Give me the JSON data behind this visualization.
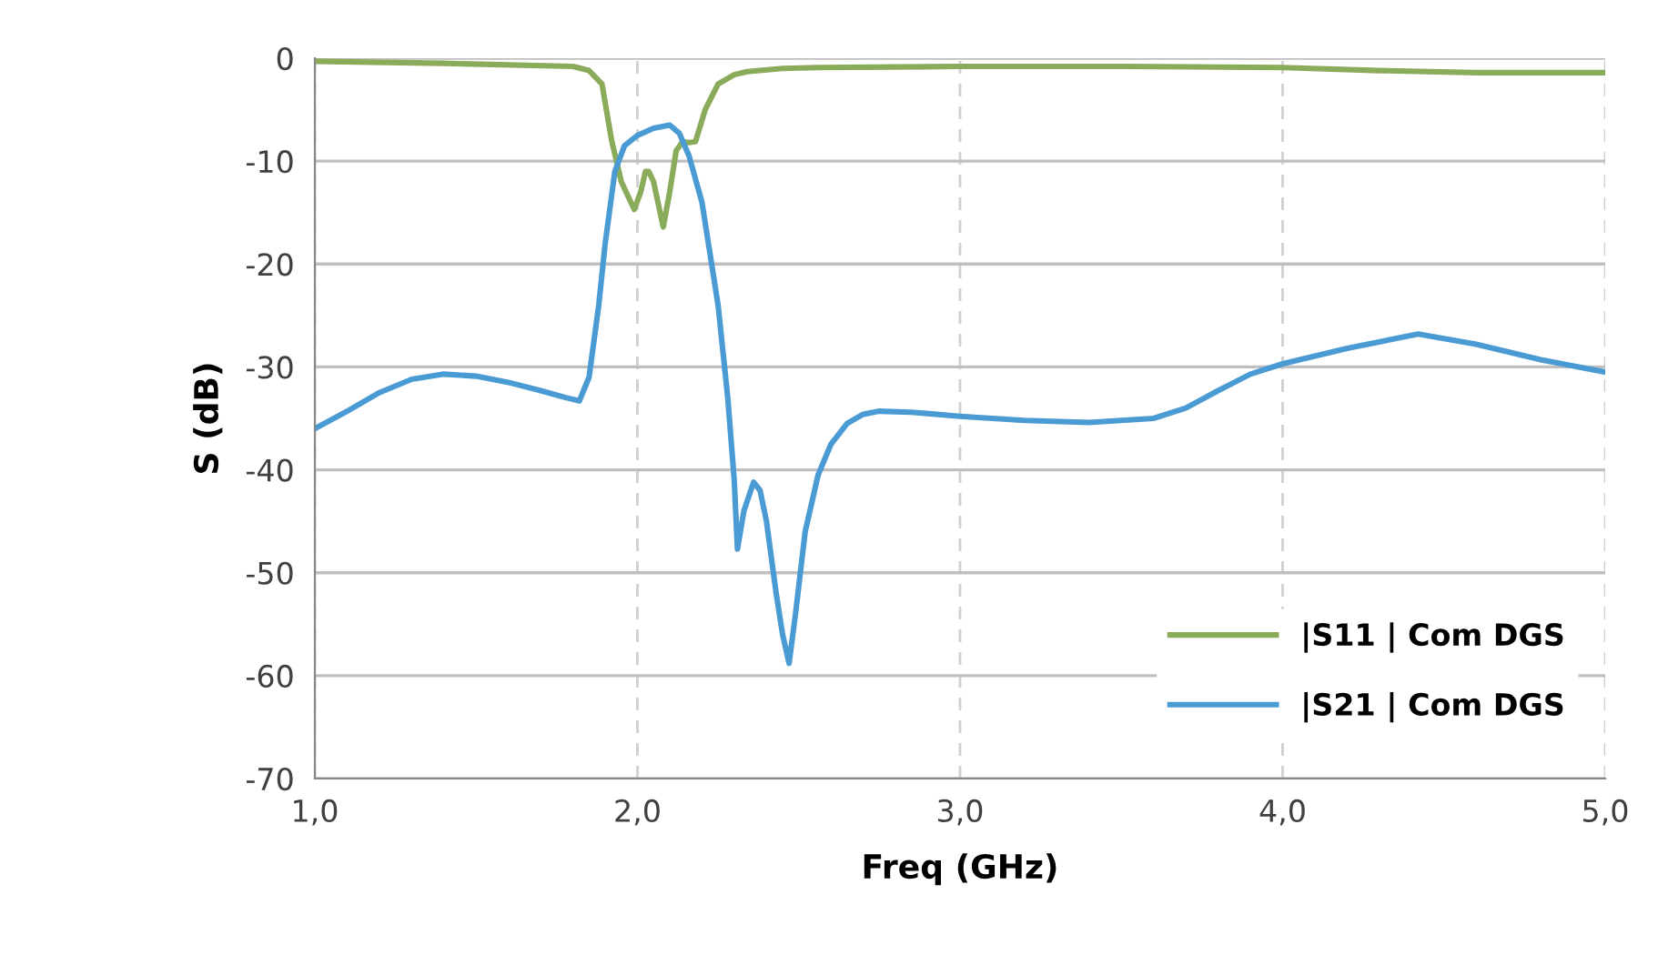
{
  "chart_data": {
    "type": "line",
    "xlabel": "Freq (GHz)",
    "ylabel": "S (dB)",
    "xlim": [
      1.0,
      5.0
    ],
    "ylim": [
      -70,
      0
    ],
    "xticks": [
      {
        "value": 1.0,
        "label": "1,0"
      },
      {
        "value": 2.0,
        "label": "2,0"
      },
      {
        "value": 3.0,
        "label": "3,0"
      },
      {
        "value": 4.0,
        "label": "4,0"
      },
      {
        "value": 5.0,
        "label": "5,0"
      }
    ],
    "yticks": [
      -70,
      -60,
      -50,
      -40,
      -30,
      -20,
      -10,
      0
    ],
    "grid": true,
    "legend": "bottom right",
    "marker": "none",
    "line_style": "solid",
    "series": [
      {
        "name": "|S11 | Com DGS",
        "color": "#8aab5a",
        "x": [
          1.0,
          1.4,
          1.8,
          1.85,
          1.89,
          1.92,
          1.95,
          1.99,
          2.01,
          2.025,
          2.035,
          2.05,
          2.08,
          2.1,
          2.12,
          2.14,
          2.16,
          2.18,
          2.21,
          2.25,
          2.3,
          2.34,
          2.45,
          2.56,
          3.0,
          3.5,
          4.0,
          4.3,
          4.6,
          5.0
        ],
        "values": [
          -0.3,
          -0.5,
          -0.8,
          -1.2,
          -2.5,
          -8,
          -12,
          -14.7,
          -13,
          -11,
          -11,
          -12,
          -16.4,
          -13,
          -9,
          -8.1,
          -8.2,
          -8.1,
          -5,
          -2.5,
          -1.6,
          -1.3,
          -1.0,
          -0.9,
          -0.8,
          -0.8,
          -0.9,
          -1.2,
          -1.4,
          -1.4
        ]
      },
      {
        "name": "|S21 | Com DGS",
        "color": "#4a9ad4",
        "x": [
          1.0,
          1.1,
          1.2,
          1.3,
          1.4,
          1.5,
          1.6,
          1.7,
          1.78,
          1.82,
          1.85,
          1.88,
          1.9,
          1.93,
          1.96,
          2.0,
          2.05,
          2.1,
          2.13,
          2.16,
          2.2,
          2.25,
          2.28,
          2.3,
          2.31,
          2.33,
          2.36,
          2.38,
          2.4,
          2.43,
          2.45,
          2.47,
          2.49,
          2.52,
          2.56,
          2.6,
          2.65,
          2.7,
          2.75,
          2.85,
          3.0,
          3.2,
          3.4,
          3.6,
          3.7,
          3.8,
          3.9,
          4.0,
          4.2,
          4.42,
          4.6,
          4.8,
          5.0
        ],
        "values": [
          -36,
          -34.3,
          -32.5,
          -31.2,
          -30.7,
          -30.9,
          -31.5,
          -32.3,
          -33,
          -33.3,
          -31,
          -24,
          -18,
          -11,
          -8.5,
          -7.5,
          -6.8,
          -6.5,
          -7.3,
          -9.5,
          -14,
          -24,
          -33,
          -41,
          -47.7,
          -44,
          -41.2,
          -42,
          -45,
          -52,
          -56,
          -58.8,
          -54,
          -46,
          -40.5,
          -37.5,
          -35.5,
          -34.6,
          -34.3,
          -34.4,
          -34.8,
          -35.2,
          -35.4,
          -35.0,
          -34,
          -32.3,
          -30.7,
          -29.7,
          -28.2,
          -26.8,
          -27.8,
          -29.3,
          -30.5
        ]
      }
    ]
  }
}
